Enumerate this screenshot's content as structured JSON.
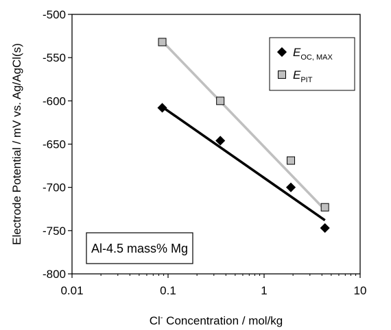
{
  "chart_data": {
    "type": "scatter",
    "xlabel_prefix": "Cl",
    "xlabel_sup": "-",
    "xlabel_suffix": " Concentration / mol/kg",
    "ylabel": "Electrode Potential / mV vs. Ag/AgCl(s)",
    "x_scale": "log",
    "xlim": [
      0.01,
      10
    ],
    "ylim": [
      -800,
      -500
    ],
    "x_ticks": [
      0.01,
      0.1,
      1,
      10
    ],
    "x_tick_labels": [
      "0.01",
      "0.1",
      "1",
      "10"
    ],
    "y_ticks": [
      -500,
      -550,
      -600,
      -650,
      -700,
      -750,
      -800
    ],
    "y_tick_labels": [
      "-500",
      "-550",
      "-600",
      "-650",
      "-700",
      "-750",
      "-800"
    ],
    "grid": false,
    "legend_position": "top-right",
    "annotation": "Al-4.5 mass% Mg",
    "series": [
      {
        "name_main": "E",
        "name_sub": "OC, MAX",
        "marker": "diamond",
        "color": "#000000",
        "line_color": "#000000",
        "x": [
          0.087,
          0.35,
          1.9,
          4.3
        ],
        "y": [
          -608,
          -646,
          -700,
          -747
        ],
        "trend": {
          "x": [
            0.087,
            4.3
          ],
          "y": [
            -607,
            -738
          ]
        }
      },
      {
        "name_main": "E",
        "name_sub": "PIT",
        "marker": "square",
        "color": "#c0c0c0",
        "line_color": "#c0c0c0",
        "x": [
          0.087,
          0.35,
          1.9,
          4.3
        ],
        "y": [
          -532,
          -600,
          -669,
          -723
        ],
        "trend": {
          "x": [
            0.087,
            4.3
          ],
          "y": [
            -531,
            -726
          ]
        }
      }
    ]
  }
}
